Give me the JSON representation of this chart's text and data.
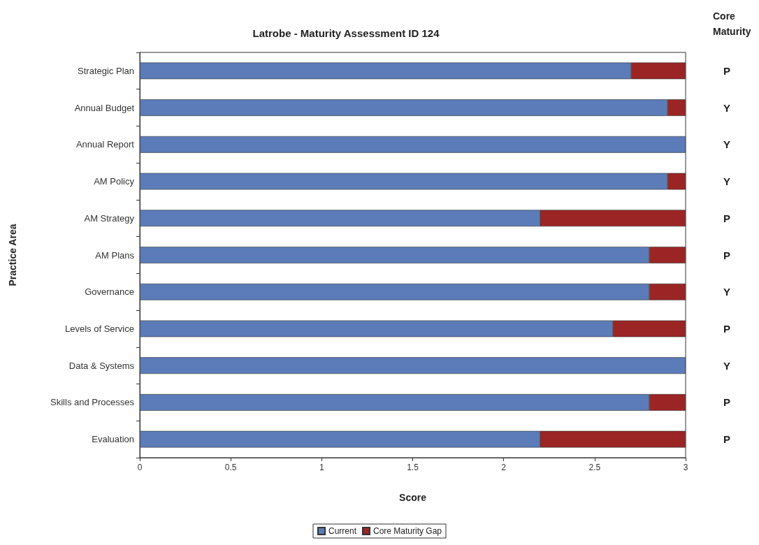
{
  "chart_data": {
    "type": "bar",
    "orientation": "horizontal",
    "stacked": true,
    "title": "Latrobe - Maturity Assessment ID 124",
    "xlabel": "Score",
    "ylabel": "Practice Area",
    "categories": [
      "Strategic Plan",
      "Annual Budget",
      "Annual Report",
      "AM Policy",
      "AM Strategy",
      "AM Plans",
      "Governance",
      "Levels of Service",
      "Data & Systems",
      "Skills and Processes",
      "Evaluation"
    ],
    "series": [
      {
        "name": "Current",
        "color": "#5b7cb8",
        "values": [
          2.7,
          2.9,
          3,
          2.9,
          2.2,
          2.8,
          2.8,
          2.6,
          3,
          2.8,
          2.2
        ]
      },
      {
        "name": "Core Maturity Gap",
        "color": "#9b2525",
        "values": [
          0.3,
          0.1,
          0,
          0.1,
          0.8,
          0.2,
          0.2,
          0.4,
          0,
          0.2,
          0.8
        ]
      }
    ],
    "xlim": [
      0,
      3
    ],
    "xticks": [
      0,
      0.5,
      1,
      1.5,
      2,
      2.5,
      3
    ],
    "grid": false,
    "legend": "bottom",
    "annotations": [
      "Core Maturity",
      "P",
      "Y",
      "Y",
      "Y",
      "P",
      "P",
      "Y",
      "P",
      "Y",
      "P",
      "P"
    ]
  }
}
